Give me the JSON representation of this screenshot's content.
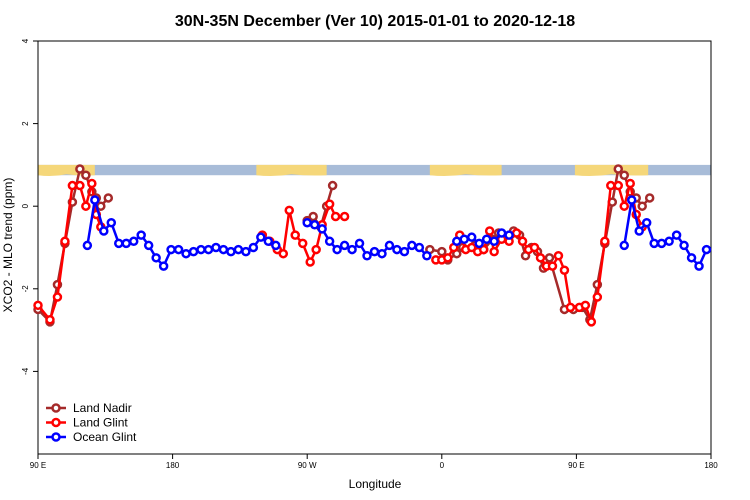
{
  "chart_data": {
    "type": "line",
    "title": "30N-35N December (Ver 10)   2015-01-01 to 2020-12-18",
    "xlabel": "Longitude",
    "ylabel": "XCO2 - MLO trend (ppm)",
    "xlim": [
      0,
      450
    ],
    "ylim": [
      -6,
      4
    ],
    "x_ticks": [
      {
        "value": 0,
        "label": "90 E"
      },
      {
        "value": 90,
        "label": "180"
      },
      {
        "value": 180,
        "label": "90 W"
      },
      {
        "value": 270,
        "label": "0"
      },
      {
        "value": 360,
        "label": "90 E"
      },
      {
        "value": 450,
        "label": "180"
      }
    ],
    "y_ticks": [
      {
        "value": -4,
        "label": "-4"
      },
      {
        "value": -2,
        "label": "-2"
      },
      {
        "value": 0,
        "label": "0"
      },
      {
        "value": 2,
        "label": "2"
      },
      {
        "value": 4,
        "label": "4"
      }
    ],
    "legend_position": "bottom-left",
    "surface_band": {
      "y_range": [
        0.75,
        1.0
      ],
      "colors": {
        "ocean": "#a8bcd8",
        "land": "#f5d77a"
      },
      "land_segments": [
        [
          0,
          38
        ],
        [
          146,
          193
        ],
        [
          262,
          310
        ],
        [
          359,
          408
        ]
      ]
    },
    "series": [
      {
        "name": "Land Nadir",
        "color": "#a52a2a",
        "points": [
          [
            0,
            -2.5
          ],
          [
            8,
            -2.8
          ],
          [
            13,
            -1.9
          ],
          [
            18,
            -0.9
          ],
          [
            23,
            0.1
          ],
          [
            28,
            0.9
          ],
          [
            32,
            0.75
          ],
          [
            36,
            0.35
          ],
          [
            39,
            0.2
          ],
          [
            42,
            0.0
          ],
          [
            47,
            0.2
          ],
          [
            180,
            -0.35
          ],
          [
            184,
            -0.25
          ],
          [
            189,
            -0.5
          ],
          [
            193,
            0.0
          ],
          [
            197,
            0.5
          ],
          [
            262,
            -1.05
          ],
          [
            270,
            -1.1
          ],
          [
            274,
            -1.3
          ],
          [
            280,
            -1.15
          ],
          [
            284,
            -1.0
          ],
          [
            292,
            -0.95
          ],
          [
            298,
            -1.05
          ],
          [
            304,
            -0.8
          ],
          [
            308,
            -0.65
          ],
          [
            314,
            -0.75
          ],
          [
            318,
            -0.6
          ],
          [
            322,
            -0.7
          ],
          [
            326,
            -1.2
          ],
          [
            330,
            -1.0
          ],
          [
            334,
            -1.1
          ],
          [
            338,
            -1.5
          ],
          [
            342,
            -1.25
          ],
          [
            352,
            -2.5
          ],
          [
            358,
            -2.5
          ],
          [
            364,
            -2.45
          ],
          [
            369,
            -2.75
          ],
          [
            374,
            -1.9
          ],
          [
            379,
            -0.9
          ],
          [
            384,
            0.1
          ],
          [
            388,
            0.9
          ],
          [
            392,
            0.75
          ],
          [
            396,
            0.35
          ],
          [
            400,
            0.2
          ],
          [
            404,
            0.0
          ],
          [
            409,
            0.2
          ]
        ]
      },
      {
        "name": "Land Glint",
        "color": "#ff0000",
        "points": [
          [
            0,
            -2.4
          ],
          [
            8,
            -2.75
          ],
          [
            13,
            -2.2
          ],
          [
            18,
            -0.85
          ],
          [
            23,
            0.5
          ],
          [
            28,
            0.5
          ],
          [
            32,
            0.0
          ],
          [
            36,
            0.55
          ],
          [
            39,
            -0.2
          ],
          [
            42,
            -0.5
          ],
          [
            150,
            -0.7
          ],
          [
            155,
            -0.85
          ],
          [
            160,
            -1.05
          ],
          [
            164,
            -1.15
          ],
          [
            168,
            -0.1
          ],
          [
            172,
            -0.7
          ],
          [
            177,
            -0.9
          ],
          [
            182,
            -1.35
          ],
          [
            186,
            -1.05
          ],
          [
            190,
            -0.45
          ],
          [
            195,
            0.05
          ],
          [
            199,
            -0.25
          ],
          [
            205,
            -0.25
          ],
          [
            266,
            -1.3
          ],
          [
            270,
            -1.3
          ],
          [
            274,
            -1.25
          ],
          [
            278,
            -1.0
          ],
          [
            282,
            -0.7
          ],
          [
            286,
            -1.05
          ],
          [
            290,
            -1.0
          ],
          [
            294,
            -1.1
          ],
          [
            298,
            -1.05
          ],
          [
            302,
            -0.6
          ],
          [
            305,
            -1.1
          ],
          [
            310,
            -0.8
          ],
          [
            315,
            -0.85
          ],
          [
            320,
            -0.65
          ],
          [
            324,
            -0.85
          ],
          [
            328,
            -1.05
          ],
          [
            332,
            -1.0
          ],
          [
            336,
            -1.25
          ],
          [
            340,
            -1.45
          ],
          [
            344,
            -1.45
          ],
          [
            348,
            -1.2
          ],
          [
            352,
            -1.55
          ],
          [
            356,
            -2.45
          ],
          [
            362,
            -2.45
          ],
          [
            366,
            -2.4
          ],
          [
            370,
            -2.8
          ],
          [
            374,
            -2.2
          ],
          [
            379,
            -0.85
          ],
          [
            383,
            0.5
          ],
          [
            388,
            0.5
          ],
          [
            392,
            0.0
          ],
          [
            396,
            0.55
          ],
          [
            400,
            -0.2
          ],
          [
            404,
            -0.5
          ]
        ]
      },
      {
        "name": "Ocean Glint",
        "color": "#0000ff",
        "points": [
          [
            33,
            -0.95
          ],
          [
            38,
            0.15
          ],
          [
            44,
            -0.6
          ],
          [
            49,
            -0.4
          ],
          [
            54,
            -0.9
          ],
          [
            59,
            -0.9
          ],
          [
            64,
            -0.85
          ],
          [
            69,
            -0.7
          ],
          [
            74,
            -0.95
          ],
          [
            79,
            -1.25
          ],
          [
            84,
            -1.45
          ],
          [
            89,
            -1.05
          ],
          [
            94,
            -1.05
          ],
          [
            99,
            -1.15
          ],
          [
            104,
            -1.1
          ],
          [
            109,
            -1.05
          ],
          [
            114,
            -1.05
          ],
          [
            119,
            -1.0
          ],
          [
            124,
            -1.05
          ],
          [
            129,
            -1.1
          ],
          [
            134,
            -1.05
          ],
          [
            139,
            -1.1
          ],
          [
            144,
            -1.0
          ],
          [
            149,
            -0.75
          ],
          [
            154,
            -0.85
          ],
          [
            159,
            -0.95
          ],
          [
            180,
            -0.4
          ],
          [
            185,
            -0.45
          ],
          [
            190,
            -0.55
          ],
          [
            195,
            -0.85
          ],
          [
            200,
            -1.05
          ],
          [
            205,
            -0.95
          ],
          [
            210,
            -1.05
          ],
          [
            215,
            -0.9
          ],
          [
            220,
            -1.2
          ],
          [
            225,
            -1.1
          ],
          [
            230,
            -1.15
          ],
          [
            235,
            -0.95
          ],
          [
            240,
            -1.05
          ],
          [
            245,
            -1.1
          ],
          [
            250,
            -0.95
          ],
          [
            255,
            -1.0
          ],
          [
            260,
            -1.2
          ],
          [
            280,
            -0.85
          ],
          [
            285,
            -0.8
          ],
          [
            290,
            -0.75
          ],
          [
            295,
            -0.9
          ],
          [
            300,
            -0.8
          ],
          [
            305,
            -0.85
          ],
          [
            310,
            -0.65
          ],
          [
            315,
            -0.7
          ],
          [
            392,
            -0.95
          ],
          [
            397,
            0.15
          ],
          [
            402,
            -0.6
          ],
          [
            407,
            -0.4
          ],
          [
            412,
            -0.9
          ],
          [
            417,
            -0.9
          ],
          [
            422,
            -0.85
          ],
          [
            427,
            -0.7
          ],
          [
            432,
            -0.95
          ],
          [
            437,
            -1.25
          ],
          [
            442,
            -1.45
          ],
          [
            447,
            -1.05
          ]
        ]
      }
    ]
  }
}
